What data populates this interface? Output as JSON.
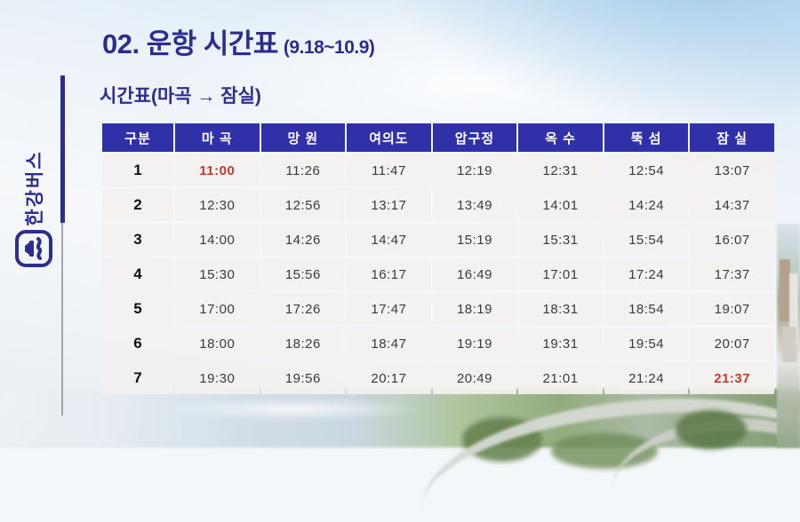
{
  "page": {
    "title": "02. 운항 시간표",
    "title_suffix": "(9.18~10.9)",
    "subtitle": "시간표(마곡 → 잠실)",
    "brand": "한강버스"
  },
  "table": {
    "columns": [
      "구분",
      "마 곡",
      "망 원",
      "여의도",
      "압구정",
      "옥 수",
      "뚝 섬",
      "잠 실"
    ],
    "rows": [
      {
        "no": "1",
        "times": [
          "11:00",
          "11:26",
          "11:47",
          "12:19",
          "12:31",
          "12:54",
          "13:07"
        ],
        "highlight": [
          0
        ]
      },
      {
        "no": "2",
        "times": [
          "12:30",
          "12:56",
          "13:17",
          "13:49",
          "14:01",
          "14:24",
          "14:37"
        ],
        "highlight": []
      },
      {
        "no": "3",
        "times": [
          "14:00",
          "14:26",
          "14:47",
          "15:19",
          "15:31",
          "15:54",
          "16:07"
        ],
        "highlight": []
      },
      {
        "no": "4",
        "times": [
          "15:30",
          "15:56",
          "16:17",
          "16:49",
          "17:01",
          "17:24",
          "17:37"
        ],
        "highlight": []
      },
      {
        "no": "5",
        "times": [
          "17:00",
          "17:26",
          "17:47",
          "18:19",
          "18:31",
          "18:54",
          "19:07"
        ],
        "highlight": []
      },
      {
        "no": "6",
        "times": [
          "18:00",
          "18:26",
          "18:47",
          "19:19",
          "19:31",
          "19:54",
          "20:07"
        ],
        "highlight": []
      },
      {
        "no": "7",
        "times": [
          "19:30",
          "19:56",
          "20:17",
          "20:49",
          "21:01",
          "21:24",
          "21:37"
        ],
        "highlight": [
          6
        ]
      }
    ]
  },
  "colors": {
    "accent_navy": "#2d2d91",
    "header_blue": "#3030a8",
    "highlight_red": "#c43a2c",
    "cell_bg": "#f3f1ef",
    "sky_blue": "#a0cbeb"
  }
}
